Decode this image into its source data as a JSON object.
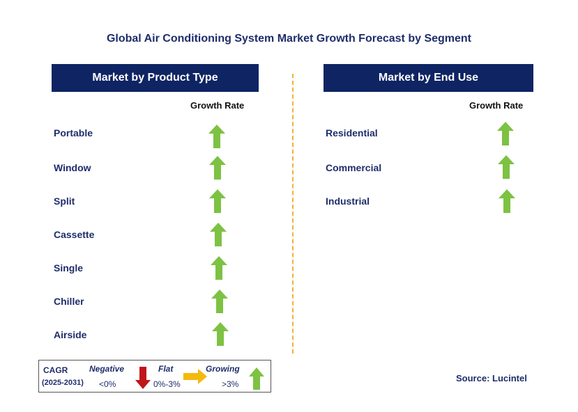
{
  "title": "Global Air Conditioning System Market Growth Forecast by Segment",
  "left_panel": {
    "header": "Market by Product Type",
    "column_header": "Growth Rate",
    "rows": [
      {
        "label": "Portable",
        "trend": "growing"
      },
      {
        "label": "Window",
        "trend": "growing"
      },
      {
        "label": "Split",
        "trend": "growing"
      },
      {
        "label": "Cassette",
        "trend": "growing"
      },
      {
        "label": "Single",
        "trend": "growing"
      },
      {
        "label": "Chiller",
        "trend": "growing"
      },
      {
        "label": "Airside",
        "trend": "growing"
      }
    ]
  },
  "right_panel": {
    "header": "Market by End Use",
    "column_header": "Growth Rate",
    "rows": [
      {
        "label": "Residential",
        "trend": "growing"
      },
      {
        "label": "Commercial",
        "trend": "growing"
      },
      {
        "label": "Industrial",
        "trend": "growing"
      }
    ]
  },
  "legend": {
    "cagr_label": "CAGR",
    "period": "(2025-2031)",
    "negative_label": "Negative",
    "negative_range": "<0%",
    "flat_label": "Flat",
    "flat_range": "0%-3%",
    "growing_label": "Growing",
    "growing_range": ">3%"
  },
  "source": "Source: Lucintel",
  "colors": {
    "header_bg": "#0f2463",
    "text_navy": "#1f2d6b",
    "growing": "#7dc243",
    "flat": "#f5b90d",
    "negative": "#c0161b",
    "divider": "#f2b233"
  },
  "icons": {
    "growing": "arrow-up-icon",
    "flat": "arrow-right-icon",
    "negative": "arrow-down-icon"
  }
}
